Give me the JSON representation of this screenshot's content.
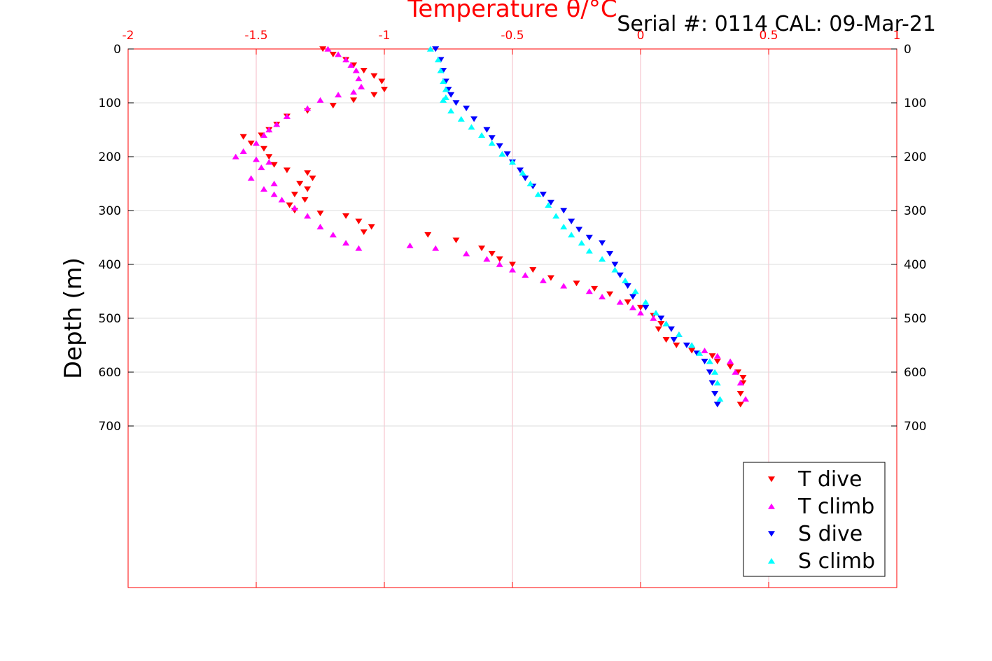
{
  "chart_data": {
    "type": "scatter",
    "title": "Serial #: 0114  CAL: 09-Mar-21",
    "xlabel": "Temperature θ/°C",
    "ylabel": "Depth (m)",
    "xlim": [
      -2,
      1
    ],
    "ylim": [
      0,
      1000
    ],
    "y_reversed": true,
    "x_ticks": [
      -2,
      -1.5,
      -1,
      -0.5,
      0,
      0.5,
      1
    ],
    "x_tick_labels": [
      "-2",
      "-1.5",
      "-1",
      "-0.5",
      "0",
      "0.5",
      "1"
    ],
    "y_ticks": [
      0,
      100,
      200,
      300,
      400,
      500,
      600,
      700
    ],
    "y_tick_labels": [
      "0",
      "100",
      "200",
      "300",
      "400",
      "500",
      "600",
      "700"
    ],
    "grid": true,
    "legend_position": "bottom-right",
    "colors": {
      "axis": "#ff0000",
      "grid": "#dddddd"
    },
    "series": [
      {
        "name": "T dive",
        "marker": "triangle-down",
        "color": "#ff0000",
        "x": [
          -1.24,
          -1.2,
          -1.15,
          -1.12,
          -1.08,
          -1.04,
          -1.01,
          -1.0,
          -1.04,
          -1.12,
          -1.2,
          -1.3,
          -1.38,
          -1.42,
          -1.45,
          -1.48,
          -1.55,
          -1.52,
          -1.47,
          -1.45,
          -1.43,
          -1.38,
          -1.3,
          -1.28,
          -1.33,
          -1.3,
          -1.35,
          -1.31,
          -1.37,
          -1.35,
          -1.25,
          -1.15,
          -1.1,
          -1.05,
          -1.08,
          -0.83,
          -0.72,
          -0.62,
          -0.58,
          -0.55,
          -0.5,
          -0.42,
          -0.35,
          -0.25,
          -0.18,
          -0.12,
          -0.05,
          0.0,
          0.05,
          0.08,
          0.07,
          0.1,
          0.14,
          0.2,
          0.28,
          0.3,
          0.35,
          0.38,
          0.4,
          0.4,
          0.39,
          0.39
        ],
        "y": [
          0,
          10,
          20,
          30,
          40,
          50,
          60,
          75,
          85,
          95,
          105,
          115,
          125,
          140,
          150,
          160,
          163,
          175,
          185,
          200,
          215,
          225,
          230,
          240,
          250,
          260,
          270,
          280,
          290,
          300,
          305,
          310,
          320,
          330,
          340,
          345,
          355,
          370,
          380,
          390,
          400,
          410,
          425,
          435,
          445,
          455,
          470,
          480,
          495,
          510,
          520,
          540,
          550,
          560,
          570,
          580,
          590,
          600,
          610,
          620,
          640,
          660
        ]
      },
      {
        "name": "T climb",
        "marker": "triangle-up",
        "color": "#ff00ff",
        "x": [
          -1.22,
          -1.18,
          -1.15,
          -1.13,
          -1.11,
          -1.1,
          -1.09,
          -1.12,
          -1.18,
          -1.25,
          -1.3,
          -1.38,
          -1.42,
          -1.45,
          -1.47,
          -1.5,
          -1.55,
          -1.58,
          -1.5,
          -1.45,
          -1.48,
          -1.52,
          -1.43,
          -1.47,
          -1.43,
          -1.4,
          -1.35,
          -1.3,
          -1.25,
          -1.2,
          -1.15,
          -1.1,
          -0.9,
          -0.8,
          -0.68,
          -0.6,
          -0.55,
          -0.5,
          -0.45,
          -0.38,
          -0.3,
          -0.2,
          -0.15,
          -0.08,
          -0.03,
          0.0,
          0.05,
          0.1,
          0.15,
          0.2,
          0.25,
          0.3,
          0.35,
          0.37,
          0.39,
          0.41
        ],
        "y": [
          0,
          10,
          20,
          30,
          40,
          55,
          70,
          80,
          85,
          95,
          110,
          125,
          140,
          150,
          160,
          175,
          190,
          200,
          205,
          210,
          220,
          240,
          250,
          260,
          270,
          280,
          295,
          310,
          330,
          345,
          360,
          370,
          365,
          370,
          380,
          390,
          400,
          410,
          420,
          430,
          440,
          450,
          460,
          470,
          480,
          490,
          500,
          510,
          530,
          550,
          560,
          570,
          580,
          600,
          620,
          650
        ]
      },
      {
        "name": "S dive",
        "marker": "triangle-down",
        "color": "#0000ff",
        "x": [
          -0.8,
          -0.78,
          -0.77,
          -0.76,
          -0.75,
          -0.74,
          -0.72,
          -0.68,
          -0.65,
          -0.6,
          -0.58,
          -0.55,
          -0.52,
          -0.5,
          -0.47,
          -0.45,
          -0.42,
          -0.38,
          -0.35,
          -0.3,
          -0.27,
          -0.24,
          -0.2,
          -0.15,
          -0.12,
          -0.1,
          -0.08,
          -0.05,
          -0.03,
          0.02,
          0.08,
          0.12,
          0.13,
          0.18,
          0.22,
          0.25,
          0.27,
          0.28,
          0.29,
          0.3
        ],
        "y": [
          0,
          20,
          40,
          60,
          75,
          85,
          100,
          110,
          130,
          150,
          165,
          180,
          195,
          210,
          225,
          240,
          255,
          270,
          285,
          300,
          320,
          335,
          350,
          360,
          380,
          400,
          420,
          440,
          460,
          480,
          500,
          520,
          540,
          550,
          565,
          580,
          600,
          620,
          640,
          660
        ]
      },
      {
        "name": "S climb",
        "marker": "triangle-up",
        "color": "#00ffff",
        "x": [
          -0.82,
          -0.79,
          -0.78,
          -0.77,
          -0.76,
          -0.76,
          -0.77,
          -0.74,
          -0.7,
          -0.66,
          -0.62,
          -0.58,
          -0.54,
          -0.5,
          -0.46,
          -0.43,
          -0.4,
          -0.36,
          -0.33,
          -0.3,
          -0.27,
          -0.23,
          -0.2,
          -0.15,
          -0.1,
          -0.06,
          -0.02,
          0.02,
          0.06,
          0.1,
          0.15,
          0.2,
          0.23,
          0.27,
          0.29,
          0.3,
          0.31
        ],
        "y": [
          0,
          20,
          40,
          60,
          75,
          90,
          95,
          115,
          130,
          145,
          160,
          175,
          195,
          210,
          230,
          250,
          270,
          290,
          310,
          330,
          345,
          360,
          375,
          390,
          410,
          430,
          450,
          470,
          490,
          510,
          530,
          550,
          565,
          580,
          600,
          620,
          650
        ]
      }
    ]
  }
}
